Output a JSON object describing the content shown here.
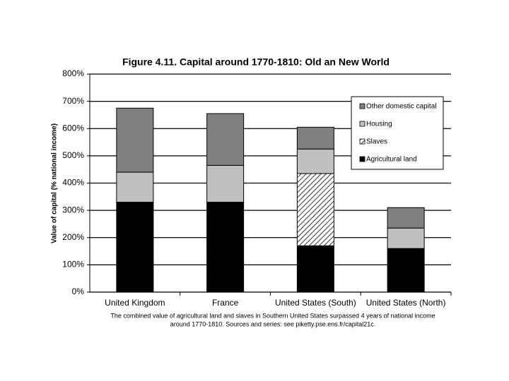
{
  "chart_data": {
    "type": "stacked-bar",
    "title": "Figure 4.11. Capital around 1770-1810: Old an New World",
    "y_label": "Value of capital (% national income)",
    "categories": [
      "United Kingdom",
      "France",
      "United States (South)",
      "United States (North)"
    ],
    "series": [
      {
        "name": "Agricultural land",
        "color": "#000000",
        "values": [
          330,
          330,
          170,
          160
        ]
      },
      {
        "name": "Slaves",
        "color": "#ffffff",
        "pattern": "hatch",
        "values": [
          0,
          0,
          265,
          0
        ]
      },
      {
        "name": "Housing",
        "color": "#c0c0c0",
        "values": [
          110,
          135,
          90,
          75
        ]
      },
      {
        "name": "Other domestic capital",
        "color": "#808080",
        "values": [
          235,
          190,
          80,
          75
        ]
      }
    ],
    "ylim": [
      0,
      800
    ],
    "yticks": [
      {
        "value": 0,
        "label": "0%"
      },
      {
        "value": 100,
        "label": "100%"
      },
      {
        "value": 200,
        "label": "200%"
      },
      {
        "value": 300,
        "label": "300%"
      },
      {
        "value": 400,
        "label": "400%"
      },
      {
        "value": 500,
        "label": "500%"
      },
      {
        "value": 600,
        "label": "600%"
      },
      {
        "value": 700,
        "label": "700%"
      },
      {
        "value": 800,
        "label": "800%"
      }
    ],
    "grid": true,
    "legend": "top-right",
    "notes": [
      "The combined value of agricultural land and slaves in Southern United States surpassed 4 years of national income",
      "around 1770-1810. Sources and series: see piketty.pse.ens.fr/capital21c."
    ]
  }
}
